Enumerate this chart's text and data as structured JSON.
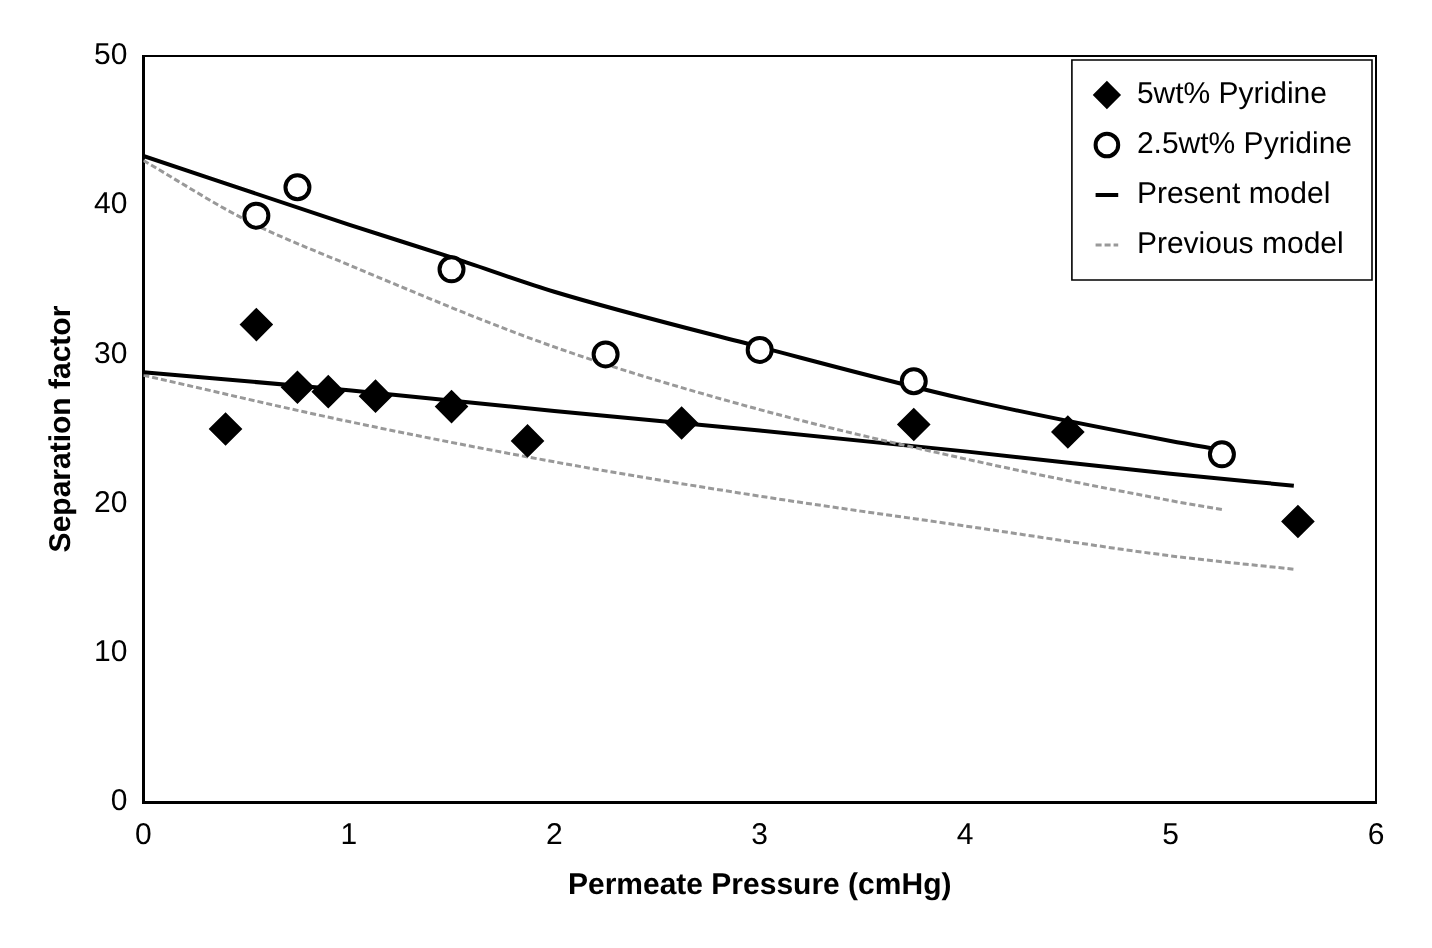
{
  "chart_data": {
    "type": "scatter",
    "xlabel": "Permeate Pressure (cmHg)",
    "ylabel": "Separation factor",
    "xlim": [
      0,
      6
    ],
    "xticks": [
      0,
      1,
      2,
      3,
      4,
      5,
      6
    ],
    "ylim": [
      0,
      50
    ],
    "yticks": [
      0,
      10,
      20,
      30,
      40,
      50
    ],
    "grid": false,
    "legend": "top right",
    "series": [
      {
        "name": "5wt% Pyridine",
        "type": "scatter",
        "marker": "diamond",
        "color": "#000000",
        "x": [
          0.4,
          0.55,
          0.75,
          0.9,
          1.13,
          1.5,
          1.87,
          2.62,
          3.75,
          4.5,
          5.62
        ],
        "values": [
          25,
          32,
          27.8,
          27.5,
          27.2,
          26.5,
          24.2,
          25.4,
          25.3,
          24.8,
          18.8
        ]
      },
      {
        "name": "2.5wt% Pyridine",
        "type": "scatter",
        "marker": "circle",
        "color": "#000000",
        "x": [
          0.55,
          0.75,
          1.5,
          2.25,
          3,
          3.75,
          5.25
        ],
        "values": [
          39.3,
          41.2,
          35.7,
          30,
          30.3,
          28.2,
          23.3
        ]
      },
      {
        "name": "Present model",
        "type": "line",
        "line_style": "solid",
        "color": "#000000",
        "x": [
          0,
          1,
          1.5,
          2,
          3,
          4,
          5,
          5.25
        ],
        "values": [
          43.3,
          38.7,
          36.5,
          34.2,
          30.5,
          27,
          24.2,
          23.6
        ]
      },
      {
        "name": "Previous model",
        "type": "line",
        "line_style": "dotted",
        "color": "#999999",
        "x": [
          0,
          0.5,
          1,
          2,
          3,
          4,
          5,
          5.25
        ],
        "values": [
          43,
          39,
          36,
          30.5,
          26.3,
          23,
          20.2,
          19.6
        ]
      },
      {
        "type": "line",
        "line_style": "solid",
        "color": "#000000",
        "x": [
          0,
          1,
          2,
          3,
          4,
          5,
          5.6
        ],
        "values": [
          28.8,
          27.6,
          26.2,
          24.9,
          23.5,
          22,
          21.2
        ]
      },
      {
        "type": "line",
        "line_style": "dotted",
        "color": "#999999",
        "x": [
          0,
          1,
          2,
          3,
          4,
          5,
          5.6
        ],
        "values": [
          28.6,
          25.5,
          22.8,
          20.5,
          18.5,
          16.5,
          15.6
        ]
      }
    ]
  }
}
